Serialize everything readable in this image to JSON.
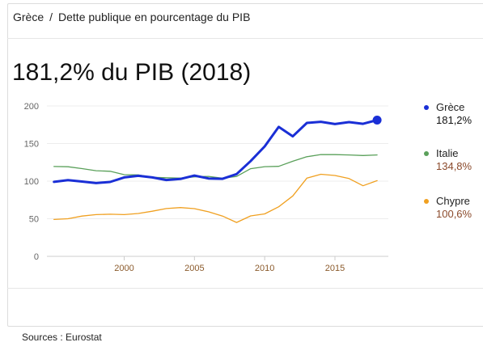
{
  "breadcrumb": {
    "root": "Grèce",
    "separator": "/",
    "current": "Dette publique en pourcentage du PIB"
  },
  "headline": "181,2% du PIB (2018)",
  "source": "Sources : Eurostat",
  "legend": [
    {
      "name": "Grèce",
      "value": "181,2%",
      "color": "#1a2fd6",
      "value_color": "#111111"
    },
    {
      "name": "Italie",
      "value": "134,8%",
      "color": "#5aa05a",
      "value_color": "#8b4a2b"
    },
    {
      "name": "Chypre",
      "value": "100,6%",
      "color": "#f0a020",
      "value_color": "#8b4a2b"
    }
  ],
  "chart_data": {
    "type": "line",
    "x": [
      1995,
      1996,
      1997,
      1998,
      1999,
      2000,
      2001,
      2002,
      2003,
      2004,
      2005,
      2006,
      2007,
      2008,
      2009,
      2010,
      2011,
      2012,
      2013,
      2014,
      2015,
      2016,
      2017,
      2018
    ],
    "xticks": [
      "2000",
      "2005",
      "2010",
      "2015"
    ],
    "xtick_values": [
      2000,
      2005,
      2010,
      2015
    ],
    "yticks": [
      "0",
      "50",
      "100",
      "150",
      "200"
    ],
    "ytick_values": [
      0,
      50,
      100,
      150,
      200
    ],
    "xlim": [
      1994.5,
      2018.8
    ],
    "ylim": [
      0,
      200
    ],
    "grid": true,
    "series": [
      {
        "name": "Grèce",
        "color": "#1a2fd6",
        "values": [
          99.0,
          101.3,
          99.5,
          97.4,
          98.9,
          104.9,
          107.1,
          104.9,
          101.5,
          102.9,
          107.4,
          103.6,
          103.1,
          109.4,
          126.7,
          146.2,
          172.1,
          159.6,
          177.4,
          178.9,
          175.9,
          178.5,
          176.2,
          181.2
        ]
      },
      {
        "name": "Italie",
        "color": "#5aa05a",
        "values": [
          119.5,
          119.1,
          116.7,
          113.9,
          113.1,
          108.6,
          108.3,
          105.1,
          104.5,
          104.0,
          105.7,
          106.3,
          103.9,
          106.2,
          116.6,
          119.2,
          119.7,
          126.5,
          132.5,
          135.4,
          135.3,
          134.8,
          134.1,
          134.8
        ]
      },
      {
        "name": "Chypre",
        "color": "#f0a020",
        "values": [
          49.0,
          50.0,
          53.5,
          55.5,
          56.0,
          55.5,
          57.0,
          60.0,
          63.5,
          64.8,
          63.4,
          59.3,
          53.5,
          45.1,
          53.8,
          56.4,
          65.9,
          80.3,
          104.0,
          109.1,
          107.5,
          103.4,
          93.9,
          100.6
        ]
      }
    ],
    "highlight": {
      "series": "Grèce",
      "x": 2018
    }
  }
}
